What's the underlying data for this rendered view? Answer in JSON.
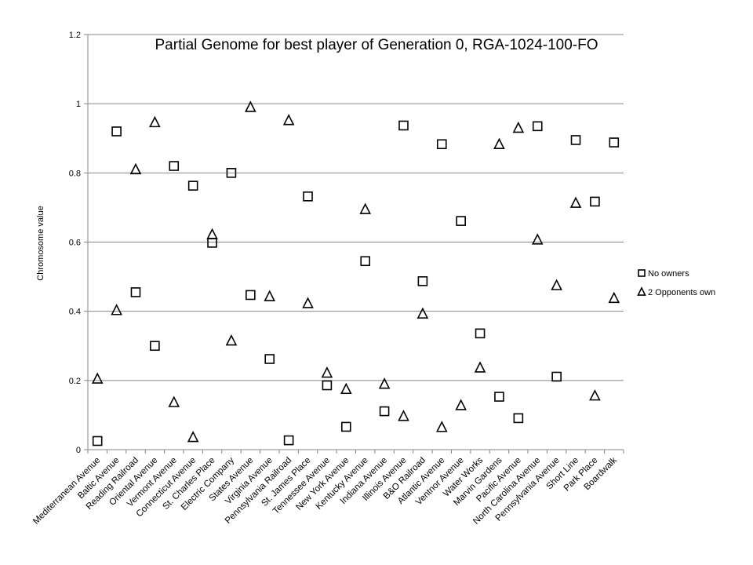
{
  "chart_data": {
    "type": "scatter",
    "title": "Partial Genome for best player of Generation 0, RGA-1024-100-FO",
    "xlabel": "",
    "ylabel": "Chromosome value",
    "ylim": [
      0,
      1.2
    ],
    "yticks": [
      "0",
      "0.2",
      "0.4",
      "0.6",
      "0.8",
      "1",
      "1.2"
    ],
    "grid": true,
    "legend_position": "right",
    "categories": [
      "Mediterranean Avenue",
      "Baltic Avenue",
      "Reading Railroad",
      "Oriental Avenue",
      "Vermont Avenue",
      "Connecticut Avenue",
      "St. Charles Place",
      "Electric Company",
      "States Avenue",
      "Virginia Avenue",
      "Pennsylvania Railroad",
      "St. James Place",
      "Tennessee Avenue",
      "New York Avenue",
      "Kentucky Avenue",
      "Indiana Avenue",
      "Illinois Avenue",
      "B&O Railroad",
      "Atlantic Avenue",
      "Ventnor Avenue",
      "Water Works",
      "Marvin Gardens",
      "Pacific Avenue",
      "North Carolina Avenue",
      "Pennsylvania Avenue",
      "Short Line",
      "Park Place",
      "Boardwalk"
    ],
    "series": [
      {
        "name": "No owners",
        "marker": "square",
        "values": [
          0.025,
          0.92,
          0.455,
          0.3,
          0.82,
          0.763,
          0.598,
          0.8,
          0.447,
          0.262,
          0.027,
          0.732,
          0.186,
          0.066,
          0.545,
          0.111,
          0.937,
          0.487,
          0.883,
          0.661,
          0.336,
          0.153,
          0.091,
          0.935,
          0.211,
          0.895,
          0.717,
          0.888
        ]
      },
      {
        "name": "2 Opponents own",
        "marker": "triangle",
        "values": [
          0.205,
          0.403,
          0.81,
          0.946,
          0.137,
          0.036,
          0.622,
          0.315,
          0.99,
          0.443,
          0.952,
          0.423,
          0.222,
          0.175,
          0.695,
          0.19,
          0.097,
          0.393,
          0.065,
          0.128,
          0.237,
          0.883,
          0.93,
          0.607,
          0.475,
          0.713,
          0.156,
          0.438
        ]
      }
    ]
  },
  "colors": {
    "axis": "#868686",
    "grid": "#868686",
    "marker": "#000000",
    "background": "#ffffff"
  }
}
